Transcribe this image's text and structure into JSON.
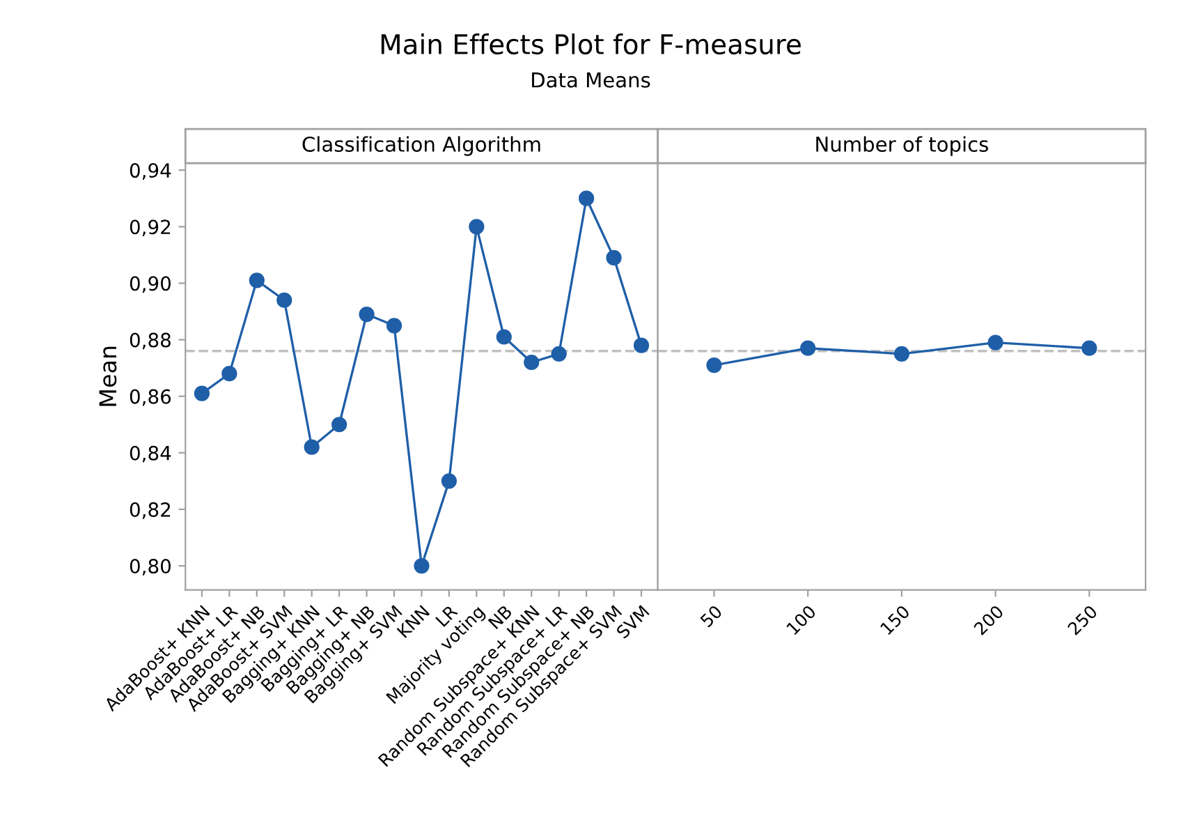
{
  "chart_data": [
    {
      "type": "line",
      "title": "Main Effects Plot for F-measure",
      "subtitle": "Data Means",
      "annotations": [
        "Classification Algorithm"
      ],
      "ylabel": "Mean",
      "categories": [
        "AdaBoost+ KNN",
        "AdaBoost+ LR",
        "AdaBoost+ NB",
        "AdaBoost+ SVM",
        "Bagging+ KNN",
        "Bagging+ LR",
        "Bagging+ NB",
        "Bagging+ SVM",
        "KNN",
        "LR",
        "Majority voting",
        "NB",
        "Random Subspace+ KNN",
        "Random Subspace+ LR",
        "Random Subspace+ NB",
        "Random Subspace+ SVM",
        "SVM"
      ],
      "series": [
        {
          "color": "#1f5fa8",
          "values": [
            0.861,
            0.868,
            0.901,
            0.894,
            0.842,
            0.85,
            0.889,
            0.885,
            0.8,
            0.83,
            0.92,
            0.881,
            0.872,
            0.875,
            0.93,
            0.909,
            0.878
          ]
        }
      ],
      "ylim": [
        0.7915,
        0.9425
      ],
      "yticks": [
        {
          "value": 0.8,
          "label": "0,80"
        },
        {
          "value": 0.82,
          "label": "0,82"
        },
        {
          "value": 0.84,
          "label": "0,84"
        },
        {
          "value": 0.86,
          "label": "0,86"
        },
        {
          "value": 0.88,
          "label": "0,88"
        },
        {
          "value": 0.9,
          "label": "0,90"
        },
        {
          "value": 0.92,
          "label": "0,92"
        },
        {
          "value": 0.94,
          "label": "0,94"
        }
      ],
      "ref_lines": [
        {
          "axis": "y",
          "value": 0.876,
          "color": "#c0c0c0",
          "line_style": "dashed"
        }
      ],
      "marker": "circle",
      "grid": false,
      "legend": false
    },
    {
      "type": "line",
      "annotations": [
        "Number of topics"
      ],
      "categories": [
        "50",
        "100",
        "150",
        "200",
        "250"
      ],
      "series": [
        {
          "color": "#1f5fa8",
          "values": [
            0.871,
            0.877,
            0.875,
            0.879,
            0.877
          ]
        }
      ],
      "ylim": [
        0.7915,
        0.9425
      ],
      "ref_lines": [
        {
          "axis": "y",
          "value": 0.876,
          "color": "#c0c0c0",
          "line_style": "dashed"
        }
      ],
      "tick_labels": "x",
      "marker": "circle",
      "grid": false,
      "legend": false
    }
  ]
}
